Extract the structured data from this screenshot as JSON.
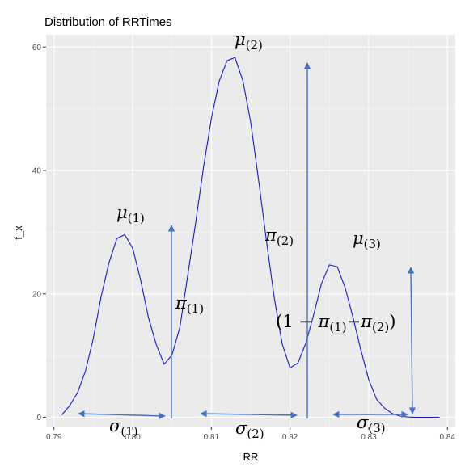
{
  "chart_data": {
    "type": "line",
    "title": "Distribution of RRTimes",
    "xlabel": "RR",
    "ylabel": "f_x",
    "xlim": [
      0.789,
      0.841
    ],
    "ylim": [
      -1.5,
      62
    ],
    "x_ticks": [
      0.79,
      0.8,
      0.81,
      0.82,
      0.83,
      0.84
    ],
    "x_tick_labels": [
      "0.79",
      "0.80",
      "0.81",
      "0.82",
      "0.83",
      "0.84"
    ],
    "y_ticks": [
      0,
      20,
      40,
      60
    ],
    "y_tick_labels": [
      "0",
      "20",
      "40",
      "60"
    ],
    "grid": true,
    "line_color": "#1a1acc",
    "arrow_color": "#4472c4",
    "panel_bg": "#ebebeb",
    "series": [
      {
        "x": [
          0.791,
          0.792,
          0.793,
          0.794,
          0.795,
          0.796,
          0.797,
          0.798,
          0.799,
          0.8,
          0.801,
          0.802,
          0.803,
          0.804,
          0.805,
          0.806,
          0.807,
          0.808,
          0.809,
          0.81,
          0.811,
          0.812,
          0.813,
          0.814,
          0.815,
          0.816,
          0.817,
          0.818,
          0.819,
          0.82,
          0.821,
          0.822,
          0.823,
          0.824,
          0.825,
          0.826,
          0.827,
          0.828,
          0.829,
          0.83,
          0.831,
          0.832,
          0.833,
          0.834,
          0.835,
          0.836,
          0.837,
          0.838,
          0.839
        ],
        "y": [
          0.4,
          1.9,
          4.0,
          7.5,
          12.8,
          19.6,
          25.1,
          29.0,
          29.6,
          27.4,
          22.3,
          16.2,
          11.8,
          8.6,
          10.1,
          14.6,
          23.0,
          31.5,
          40.5,
          48.4,
          54.5,
          57.8,
          58.3,
          54.6,
          47.8,
          38.5,
          28.6,
          19.3,
          11.9,
          8.0,
          8.8,
          12.0,
          16.6,
          21.7,
          24.7,
          24.4,
          21.0,
          16.2,
          10.9,
          6.1,
          2.9,
          1.5,
          0.6,
          0.2,
          0.05,
          0.0,
          0.0,
          0.0,
          0.0
        ]
      }
    ],
    "labels": [
      {
        "id": "mu1",
        "main": "μ",
        "sub": "(1)"
      },
      {
        "id": "mu2",
        "main": "μ",
        "sub": "(2)"
      },
      {
        "id": "mu3",
        "main": "μ",
        "sub": "(3)"
      },
      {
        "id": "pi1",
        "main": "π",
        "sub": "(1)"
      },
      {
        "id": "pi2",
        "main": "π",
        "sub": "(2)"
      },
      {
        "id": "sigma1",
        "main": "σ",
        "sub": "(1)"
      },
      {
        "id": "sigma2",
        "main": "σ",
        "sub": "(2)"
      },
      {
        "id": "sigma3",
        "main": "σ",
        "sub": "(3)"
      }
    ],
    "complement_label": {
      "open": "(1 − ",
      "pi_a": "π",
      "sub_a": "(1)",
      "minus": "−",
      "pi_b": "π",
      "sub_b": "(2)",
      "close": ")"
    }
  }
}
